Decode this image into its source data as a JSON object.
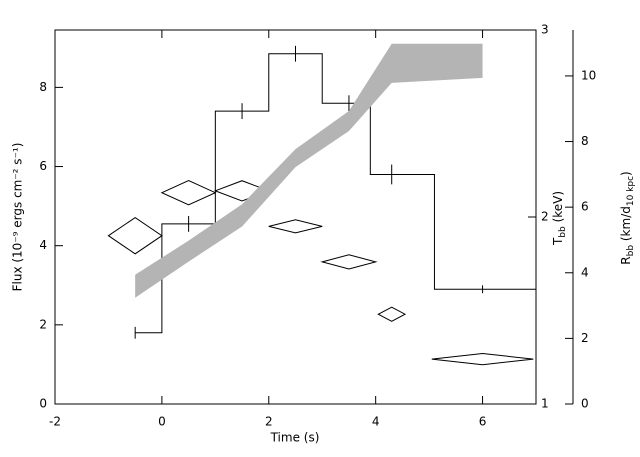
{
  "chart_data": {
    "type": "step",
    "xlabel": "Time (s)",
    "ylabel": "Flux (10⁻⁹ ergs cm⁻² s⁻¹)",
    "y2label": [
      "T",
      "bb",
      " (keV)"
    ],
    "y3label": [
      "R",
      "bb",
      " (km/d",
      "10 kpc",
      ")"
    ],
    "xlim": [
      -2,
      7
    ],
    "xticks": [
      -2,
      0,
      2,
      4,
      6
    ],
    "ylim": [
      0,
      9.45
    ],
    "yticks": [
      0,
      2,
      4,
      6,
      8
    ],
    "y2lim": [
      1,
      3
    ],
    "y2ticks": [
      1,
      2,
      3
    ],
    "y3lim": [
      0,
      11.4
    ],
    "y3ticks": [
      0,
      2,
      4,
      6,
      8,
      10
    ],
    "series": [
      {
        "type": "step",
        "color": "#000000",
        "bins": [
          -0.5,
          0,
          1,
          2,
          3,
          3.9,
          5.1,
          7
        ],
        "values": [
          1.8,
          4.55,
          7.4,
          8.85,
          7.6,
          5.8,
          2.9
        ],
        "x": [
          -0.5,
          0.5,
          1.5,
          2.5,
          3.5,
          4.3,
          6
        ],
        "errors": [
          0.15,
          0.2,
          0.2,
          0.2,
          0.2,
          0.25,
          0.1
        ]
      },
      {
        "type": "diamond",
        "axis": "y2",
        "color": "#000000",
        "x": [
          -0.5,
          0.5,
          1.5,
          2.5,
          3.5,
          4.3,
          6
        ],
        "xerr": [
          0.5,
          0.5,
          0.5,
          0.5,
          0.5,
          0.25,
          0.95
        ],
        "values": [
          1.9,
          2.13,
          2.14,
          1.95,
          1.76,
          1.48,
          1.24
        ],
        "errors": [
          0.097,
          0.065,
          0.054,
          0.035,
          0.038,
          0.038,
          0.03
        ]
      },
      {
        "type": "band",
        "axis": "y3",
        "color": "#b4b4b4",
        "x": [
          -0.5,
          0.5,
          1.5,
          2.5,
          3.5,
          4.3,
          6
        ],
        "low": [
          3.24,
          4.34,
          5.41,
          7.22,
          8.32,
          9.79,
          9.94
        ],
        "high": [
          3.94,
          4.98,
          6.09,
          7.77,
          8.93,
          10.98,
          10.98
        ]
      }
    ]
  }
}
